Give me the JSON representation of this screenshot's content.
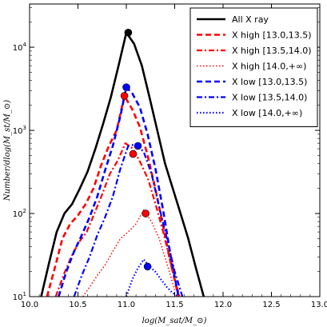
{
  "chart_data": {
    "type": "line",
    "xlabel": "log(M_sat/M_⊙)",
    "ylabel": "Number/dlog(M_st/M_⊙)",
    "xlim": [
      10.0,
      13.0
    ],
    "ylim_log10": [
      1,
      4.52
    ],
    "yscale": "log",
    "x_ticks": [
      "10.0",
      "10.5",
      "11.0",
      "11.5",
      "12.0",
      "12.5",
      "13.0"
    ],
    "y_ticks": [
      "10^1",
      "10^2",
      "10^3",
      "10^4"
    ],
    "legend_position": "top-right",
    "series": [
      {
        "name": "All X ray",
        "color": "#000000",
        "dash": "solid",
        "width": 2.6,
        "x": [
          10.12,
          10.2,
          10.28,
          10.36,
          10.44,
          10.52,
          10.6,
          10.68,
          10.76,
          10.84,
          10.92,
          11.0,
          11.08,
          11.16,
          11.24,
          11.32,
          11.4,
          11.48,
          11.56,
          11.64,
          11.72,
          11.8
        ],
        "y": [
          10,
          25,
          60,
          100,
          130,
          200,
          320,
          600,
          1200,
          2500,
          6000,
          15000,
          11000,
          6000,
          2500,
          1000,
          400,
          200,
          100,
          50,
          22,
          10
        ],
        "marker": {
          "x": 11.02,
          "y": 15000
        }
      },
      {
        "name": "X high [13.0,13.5)",
        "color": "#ff0000",
        "dash": "dash",
        "width": 2.6,
        "x": [
          10.18,
          10.26,
          10.34,
          10.42,
          10.5,
          10.58,
          10.66,
          10.74,
          10.82,
          10.9,
          10.98,
          11.06,
          11.14,
          11.22,
          11.3,
          11.38,
          11.46,
          11.54
        ],
        "y": [
          10,
          22,
          50,
          75,
          95,
          130,
          200,
          380,
          650,
          1000,
          2600,
          1800,
          1100,
          500,
          200,
          70,
          25,
          10
        ],
        "marker": {
          "x": 10.98,
          "y": 2600
        }
      },
      {
        "name": "X high [13.5,14.0)",
        "color": "#ff0000",
        "dash": "dashdot",
        "width": 2.2,
        "x": [
          10.27,
          10.35,
          10.43,
          10.51,
          10.59,
          10.67,
          10.75,
          10.83,
          10.91,
          10.99,
          11.07,
          11.15,
          11.23,
          11.31,
          11.39,
          11.47,
          11.55
        ],
        "y": [
          10,
          18,
          30,
          45,
          60,
          100,
          170,
          300,
          430,
          700,
          600,
          400,
          250,
          120,
          55,
          22,
          10
        ],
        "marker": {
          "x": 11.07,
          "y": 520
        }
      },
      {
        "name": "X high [14.0,+∞)",
        "color": "#ff0000",
        "dash": "dot",
        "width": 1.5,
        "x": [
          10.55,
          10.62,
          10.7,
          10.78,
          10.86,
          10.94,
          11.02,
          11.1,
          11.18,
          11.26,
          11.34,
          11.42,
          11.5
        ],
        "y": [
          10,
          13,
          18,
          24,
          35,
          50,
          60,
          75,
          110,
          80,
          50,
          25,
          12
        ],
        "marker": {
          "x": 11.2,
          "y": 100
        }
      },
      {
        "name": "X low [13.0,13.5)",
        "color": "#0000ff",
        "dash": "dash",
        "width": 2.6,
        "x": [
          10.3,
          10.38,
          10.46,
          10.54,
          10.62,
          10.7,
          10.78,
          10.86,
          10.94,
          11.0,
          11.06,
          11.14,
          11.22,
          11.3,
          11.38,
          11.46,
          11.54
        ],
        "y": [
          10,
          20,
          35,
          55,
          90,
          160,
          330,
          650,
          1500,
          3300,
          2800,
          1900,
          900,
          350,
          110,
          30,
          10
        ],
        "marker": {
          "x": 11.0,
          "y": 3300
        }
      },
      {
        "name": "X low [13.5,14.0)",
        "color": "#0000ff",
        "dash": "dashdot",
        "width": 2.2,
        "x": [
          10.46,
          10.54,
          10.62,
          10.7,
          10.78,
          10.86,
          10.94,
          11.02,
          11.1,
          11.18,
          11.26,
          11.34,
          11.42,
          11.5,
          11.58
        ],
        "y": [
          10,
          18,
          30,
          55,
          90,
          160,
          350,
          650,
          680,
          550,
          300,
          120,
          50,
          20,
          10
        ],
        "marker": {
          "x": 11.12,
          "y": 650
        }
      },
      {
        "name": "X low [14.0,+∞)",
        "color": "#0000ff",
        "dash": "dot",
        "width": 2.2,
        "x": [
          11.0,
          11.06,
          11.12,
          11.18,
          11.24,
          11.3,
          11.36,
          11.42,
          11.48,
          11.54
        ],
        "y": [
          10,
          16,
          22,
          28,
          23,
          20,
          16,
          13,
          11,
          10
        ],
        "marker": {
          "x": 11.22,
          "y": 23
        }
      }
    ]
  }
}
